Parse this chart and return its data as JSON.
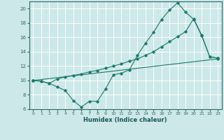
{
  "xlabel": "Humidex (Indice chaleur)",
  "bg_color": "#cce8e8",
  "grid_color": "#ffffff",
  "line_color": "#1a7a6a",
  "xlim": [
    -0.5,
    23.5
  ],
  "ylim": [
    6,
    21
  ],
  "xticks": [
    0,
    1,
    2,
    3,
    4,
    5,
    6,
    7,
    8,
    9,
    10,
    11,
    12,
    13,
    14,
    15,
    16,
    17,
    18,
    19,
    20,
    21,
    22,
    23
  ],
  "yticks": [
    6,
    8,
    10,
    12,
    14,
    16,
    18,
    20
  ],
  "series1_x": [
    0,
    1,
    2,
    3,
    4,
    5,
    6,
    7,
    8,
    9,
    10,
    11,
    12,
    13,
    14,
    15,
    16,
    17,
    18,
    19,
    20,
    21,
    22,
    23
  ],
  "series1_y": [
    10,
    9.9,
    9.6,
    9.1,
    8.6,
    7.2,
    6.3,
    7.1,
    7.1,
    8.8,
    10.8,
    11.0,
    11.5,
    13.5,
    15.2,
    16.7,
    18.5,
    19.8,
    20.8,
    19.5,
    18.5,
    16.2,
    13.3,
    13.1
  ],
  "series2_x": [
    0,
    1,
    2,
    3,
    4,
    5,
    6,
    7,
    8,
    9,
    10,
    11,
    12,
    13,
    14,
    15,
    16,
    17,
    18,
    19,
    20,
    21,
    22,
    23
  ],
  "series2_y": [
    10,
    9.9,
    9.6,
    10.2,
    10.5,
    10.7,
    10.9,
    11.2,
    11.4,
    11.7,
    12.0,
    12.3,
    12.7,
    13.0,
    13.5,
    14.0,
    14.7,
    15.4,
    16.1,
    16.8,
    18.6,
    16.3,
    13.3,
    13.1
  ],
  "series3_x": [
    0,
    23
  ],
  "series3_y": [
    10,
    13.0
  ]
}
